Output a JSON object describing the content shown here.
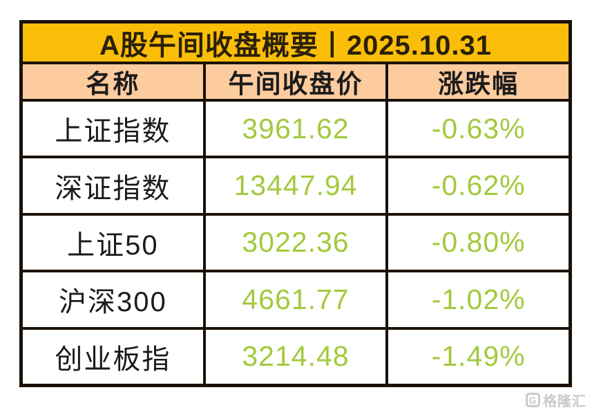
{
  "table": {
    "title": "A股午间收盘概要丨2025.10.31",
    "columns": {
      "name": "名称",
      "close": "午间收盘价",
      "change": "涨跌幅"
    },
    "rows": [
      {
        "name": "上证指数",
        "close": "3961.62",
        "change": "-0.63%"
      },
      {
        "name": "深证指数",
        "close": "13447.94",
        "change": "-0.62%"
      },
      {
        "name": "上证50",
        "close": "3022.36",
        "change": "-0.80%"
      },
      {
        "name": "沪深300",
        "close": "4661.77",
        "change": "-1.02%"
      },
      {
        "name": "创业板指",
        "close": "3214.48",
        "change": "-1.49%"
      }
    ],
    "colors": {
      "title_background": "#FBBE08",
      "header_background": "#FCCB9E",
      "value_text": "#A3C93C",
      "border": "#1A1208"
    }
  },
  "watermark": {
    "logo": "G",
    "text": "格隆汇"
  },
  "chart_data": {
    "type": "table",
    "title": "A股午间收盘概要丨2025.10.31",
    "columns": [
      "名称",
      "午间收盘价",
      "涨跌幅"
    ],
    "rows": [
      [
        "上证指数",
        3961.62,
        "-0.63%"
      ],
      [
        "深证指数",
        13447.94,
        "-0.62%"
      ],
      [
        "上证50",
        3022.36,
        "-0.80%"
      ],
      [
        "沪深300",
        4661.77,
        "-1.02%"
      ],
      [
        "创业板指",
        3214.48,
        "-1.49%"
      ]
    ]
  }
}
